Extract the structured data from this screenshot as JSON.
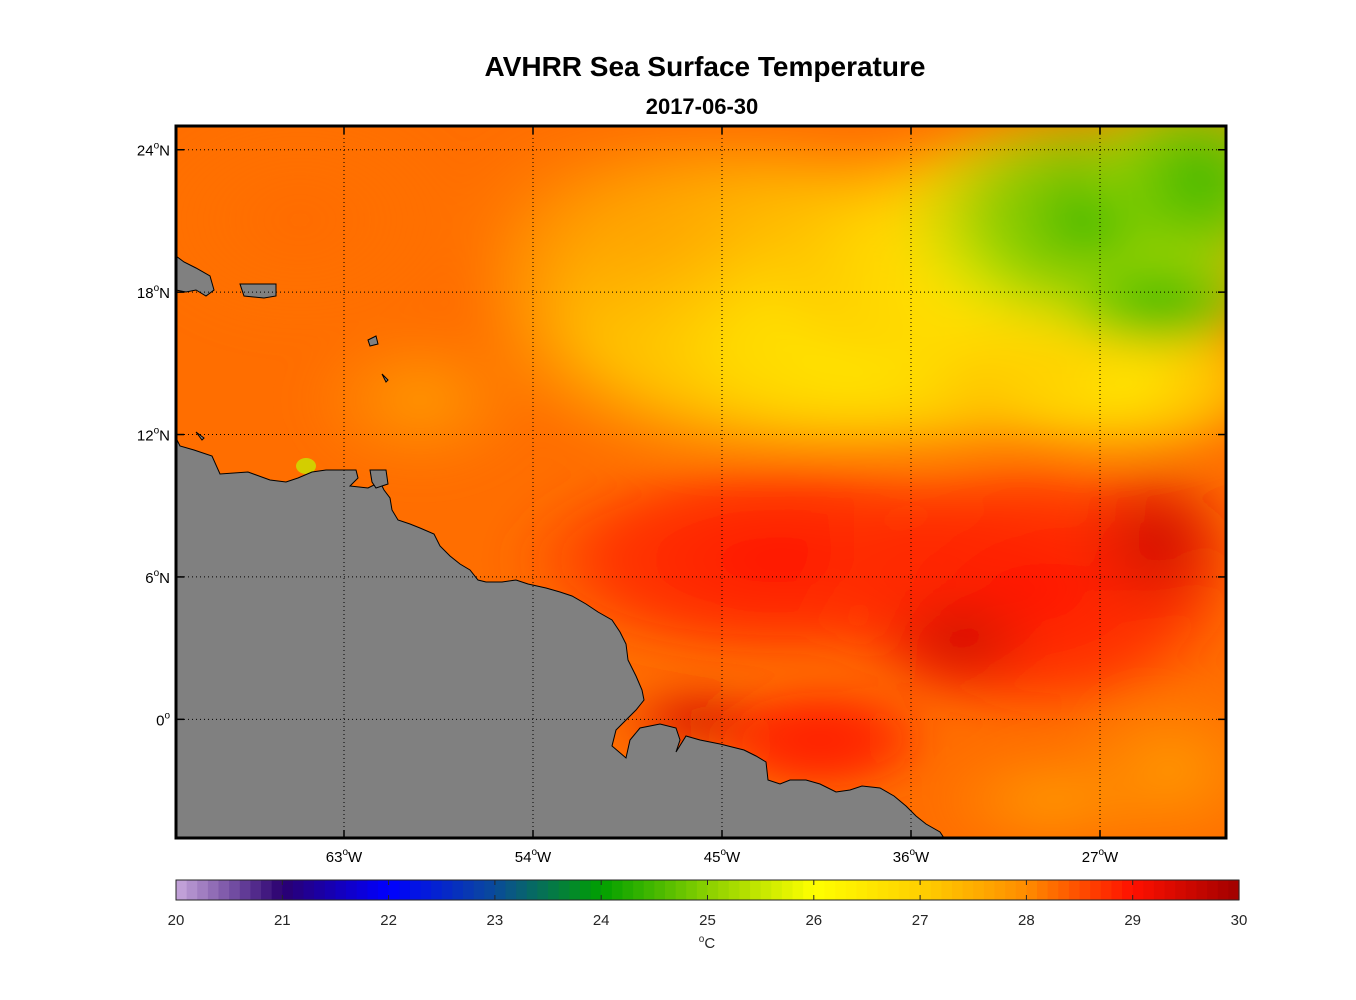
{
  "title": "AVHRR Sea Surface Temperature",
  "subtitle": "2017-06-30",
  "map": {
    "lon_range": [
      -71,
      -21
    ],
    "lat_range": [
      -5,
      25
    ],
    "lon_ticks": [
      {
        "value": -63,
        "label": "63",
        "deg": "o",
        "hemi": "W"
      },
      {
        "value": -54,
        "label": "54",
        "deg": "o",
        "hemi": "W"
      },
      {
        "value": -45,
        "label": "45",
        "deg": "o",
        "hemi": "W"
      },
      {
        "value": -36,
        "label": "36",
        "deg": "o",
        "hemi": "W"
      },
      {
        "value": -27,
        "label": "27",
        "deg": "o",
        "hemi": "W"
      }
    ],
    "lat_ticks": [
      {
        "value": 24,
        "label": "24",
        "deg": "o",
        "hemi": "N"
      },
      {
        "value": 18,
        "label": "18",
        "deg": "o",
        "hemi": "N"
      },
      {
        "value": 12,
        "label": "12",
        "deg": "o",
        "hemi": "N"
      },
      {
        "value": 6,
        "label": "6",
        "deg": "o",
        "hemi": "N"
      },
      {
        "value": 0,
        "label": "0",
        "deg": "o",
        "hemi": ""
      }
    ],
    "land_color": "#808080",
    "grid": "dotted"
  },
  "colorbar": {
    "min": 20,
    "max": 30,
    "ticks": [
      "20",
      "21",
      "22",
      "23",
      "24",
      "25",
      "26",
      "27",
      "28",
      "29",
      "30"
    ],
    "units_deg": "o",
    "units": "C",
    "stops": [
      {
        "v": 20,
        "c": "#c8a8dc"
      },
      {
        "v": 21,
        "c": "#2a0070"
      },
      {
        "v": 22,
        "c": "#0000ff"
      },
      {
        "v": 23,
        "c": "#0a4b9a"
      },
      {
        "v": 24,
        "c": "#00a000"
      },
      {
        "v": 25,
        "c": "#8ad000"
      },
      {
        "v": 26,
        "c": "#ffff00"
      },
      {
        "v": 27,
        "c": "#ffd000"
      },
      {
        "v": 28,
        "c": "#ff8c00"
      },
      {
        "v": 29,
        "c": "#ff1000"
      },
      {
        "v": 30,
        "c": "#a00000"
      }
    ]
  }
}
